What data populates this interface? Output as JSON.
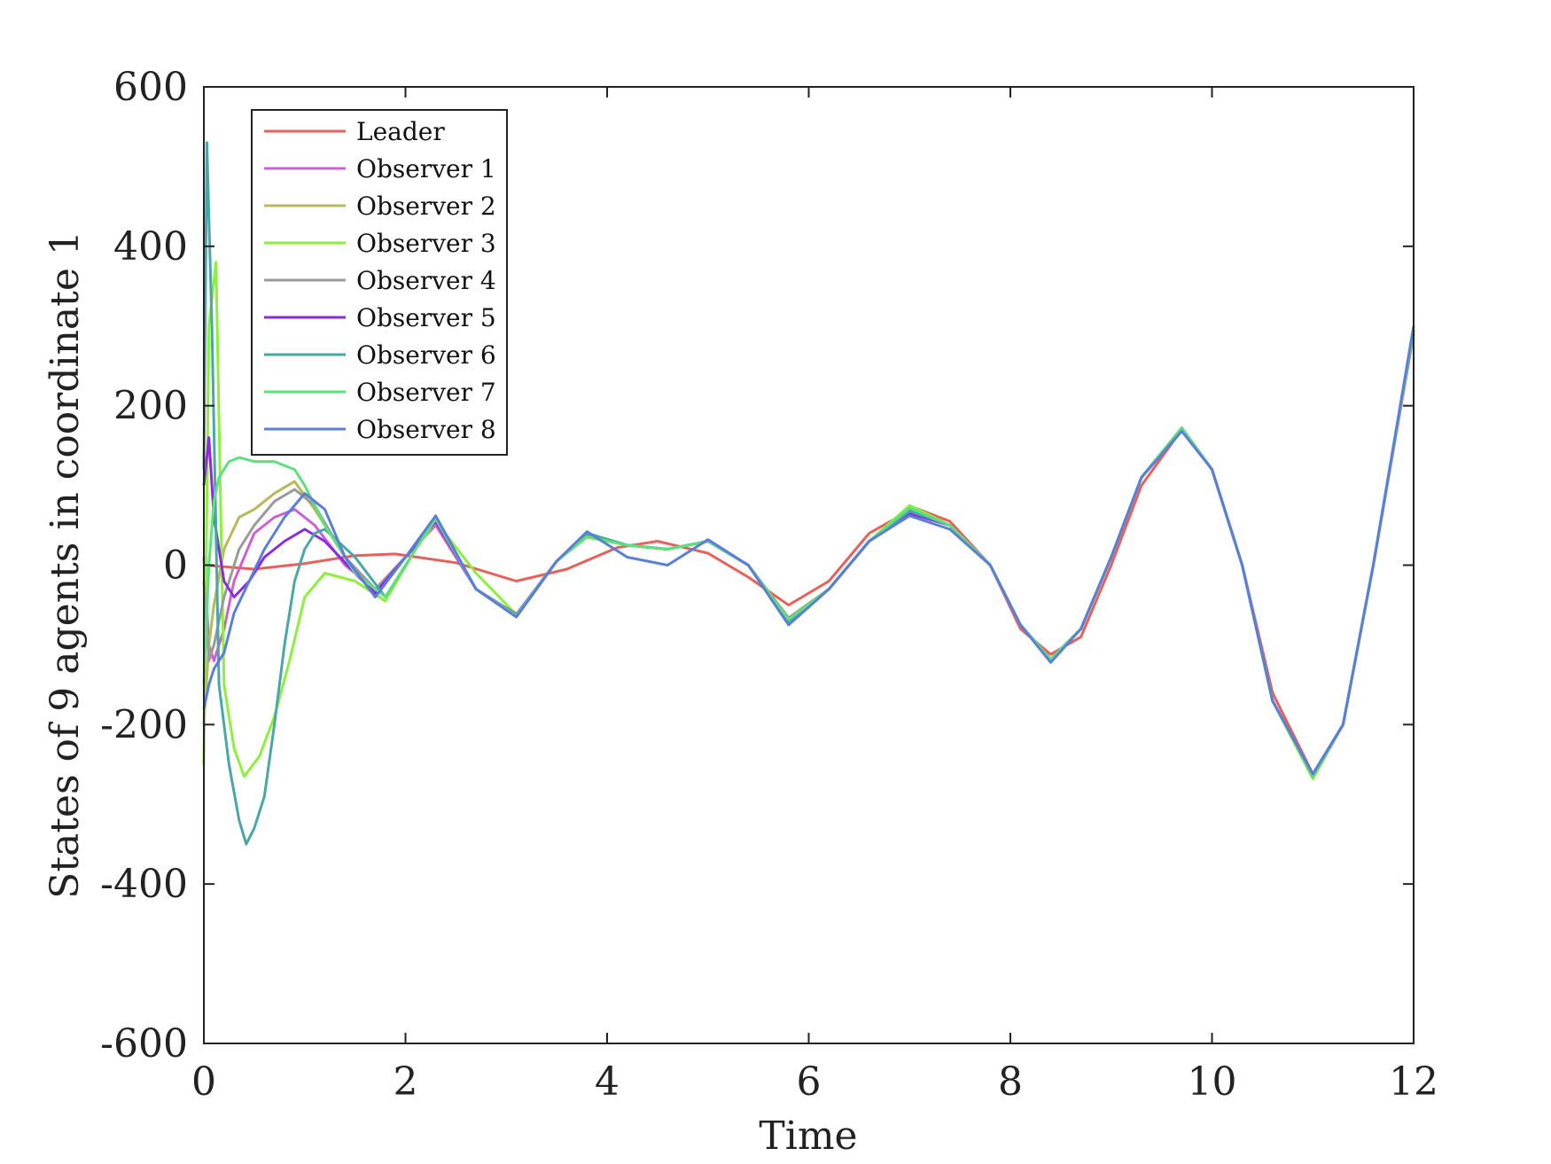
{
  "chart_data": {
    "type": "line",
    "title": "",
    "xlabel": "Time",
    "ylabel": "States of 9 agents in coordinate 1",
    "xlim": [
      0,
      12
    ],
    "ylim": [
      -600,
      600
    ],
    "xticks": [
      "0",
      "2",
      "4",
      "6",
      "8",
      "10",
      "12"
    ],
    "yticks": [
      "600",
      "400",
      "200",
      "0",
      "-200",
      "-400",
      "-600"
    ],
    "grid": false,
    "legend_position": "top-left",
    "series": [
      {
        "name": "Leader",
        "color": "#e8605a",
        "x": [
          0,
          0.5,
          1,
          1.5,
          1.9,
          2.5,
          3.1,
          3.6,
          4.1,
          4.5,
          5,
          5.4,
          5.8,
          6.2,
          6.6,
          7.05,
          7.4,
          7.8,
          8.1,
          8.4,
          8.7,
          9,
          9.3,
          9.7,
          10,
          10.3,
          10.6,
          11,
          11.3,
          11.6,
          12
        ],
        "y": [
          0,
          -5,
          2,
          12,
          14,
          3,
          -20,
          -5,
          22,
          30,
          15,
          -15,
          -50,
          -20,
          40,
          72,
          55,
          0,
          -80,
          -112,
          -90,
          0,
          100,
          170,
          120,
          0,
          -160,
          -262,
          -200,
          0,
          290
        ]
      },
      {
        "name": "Observer 1",
        "color": "#cc60d6",
        "x": [
          0,
          0.05,
          0.1,
          0.2,
          0.3,
          0.5,
          0.7,
          0.9,
          1.1,
          1.4,
          1.7,
          2,
          2.3,
          2.7,
          3.1,
          3.5,
          3.8,
          4.2,
          4.6,
          5,
          5.4,
          5.8,
          6.2,
          6.6,
          7,
          7.4,
          7.8,
          8.1,
          8.4,
          8.7,
          9,
          9.3,
          9.7,
          10,
          10.3,
          10.6,
          11,
          11.3,
          11.6,
          12
        ],
        "y": [
          10,
          -100,
          -120,
          -80,
          -20,
          40,
          60,
          70,
          50,
          0,
          -30,
          10,
          50,
          -30,
          -65,
          5,
          38,
          25,
          20,
          30,
          0,
          -68,
          -30,
          30,
          65,
          50,
          0,
          -75,
          -118,
          -80,
          10,
          110,
          172,
          120,
          0,
          -170,
          -265,
          -200,
          0,
          295
        ]
      },
      {
        "name": "Observer 2",
        "color": "#b9b95c",
        "x": [
          0,
          0.05,
          0.1,
          0.2,
          0.35,
          0.5,
          0.7,
          0.9,
          1.1,
          1.4,
          1.7,
          2,
          2.3,
          2.7,
          3.1,
          3.5,
          3.8,
          4.2,
          4.6,
          5,
          5.4,
          5.8,
          6.2,
          6.6,
          7,
          7.4,
          7.8,
          8.1,
          8.4,
          8.7,
          9,
          9.3,
          9.7,
          10,
          10.3,
          10.6,
          11,
          11.3,
          11.6,
          12
        ],
        "y": [
          -200,
          -100,
          -50,
          20,
          60,
          70,
          90,
          105,
          70,
          10,
          -30,
          10,
          55,
          -30,
          -62,
          5,
          38,
          25,
          20,
          30,
          0,
          -66,
          -30,
          30,
          68,
          50,
          0,
          -75,
          -118,
          -80,
          10,
          110,
          172,
          120,
          0,
          -170,
          -265,
          -200,
          0,
          295
        ]
      },
      {
        "name": "Observer 3",
        "color": "#8df03c",
        "x": [
          0,
          0.05,
          0.12,
          0.2,
          0.3,
          0.4,
          0.55,
          0.7,
          0.85,
          1,
          1.2,
          1.5,
          1.8,
          2.1,
          2.3,
          2.7,
          3.1,
          3.5,
          3.8,
          4.2,
          4.6,
          5,
          5.4,
          5.8,
          6.2,
          6.6,
          7,
          7.4,
          7.8,
          8.1,
          8.4,
          8.7,
          9,
          9.3,
          9.7,
          10,
          10.3,
          10.6,
          11,
          11.3,
          11.6,
          12
        ],
        "y": [
          -250,
          300,
          380,
          -150,
          -230,
          -265,
          -240,
          -190,
          -120,
          -40,
          -10,
          -20,
          -45,
          20,
          55,
          -10,
          -62,
          5,
          35,
          25,
          20,
          30,
          0,
          -70,
          -30,
          30,
          75,
          50,
          0,
          -75,
          -118,
          -80,
          10,
          110,
          172,
          120,
          0,
          -170,
          -268,
          -200,
          0,
          295
        ]
      },
      {
        "name": "Observer 4",
        "color": "#9b9b9b",
        "x": [
          0,
          0.05,
          0.1,
          0.2,
          0.35,
          0.5,
          0.7,
          0.9,
          1.1,
          1.4,
          1.7,
          2,
          2.3,
          2.7,
          3.1,
          3.5,
          3.8,
          4.2,
          4.6,
          5,
          5.4,
          5.8,
          6.2,
          6.6,
          7,
          7.4,
          7.8,
          8.1,
          8.4,
          8.7,
          9,
          9.3,
          9.7,
          10,
          10.3,
          10.6,
          11,
          11.3,
          11.6,
          12
        ],
        "y": [
          -20,
          -120,
          -100,
          -40,
          20,
          50,
          80,
          95,
          75,
          10,
          -30,
          10,
          55,
          -30,
          -63,
          5,
          38,
          25,
          20,
          30,
          0,
          -67,
          -30,
          30,
          66,
          50,
          0,
          -75,
          -118,
          -80,
          10,
          110,
          172,
          120,
          0,
          -170,
          -265,
          -200,
          0,
          295
        ]
      },
      {
        "name": "Observer 5",
        "color": "#8a2be2",
        "x": [
          0,
          0.05,
          0.1,
          0.2,
          0.3,
          0.45,
          0.6,
          0.8,
          1,
          1.2,
          1.5,
          1.7,
          2,
          2.3,
          2.7,
          3.1,
          3.5,
          3.8,
          4.2,
          4.6,
          5,
          5.4,
          5.8,
          6.2,
          6.6,
          7,
          7.4,
          7.8,
          8.1,
          8.4,
          8.7,
          9,
          9.3,
          9.7,
          10,
          10.3,
          10.6,
          11,
          11.3,
          11.6,
          12
        ],
        "y": [
          100,
          160,
          60,
          -20,
          -40,
          -20,
          10,
          30,
          45,
          30,
          -10,
          -35,
          10,
          55,
          -30,
          -62,
          5,
          38,
          25,
          20,
          30,
          0,
          -68,
          -30,
          30,
          65,
          50,
          0,
          -75,
          -118,
          -80,
          10,
          110,
          172,
          120,
          0,
          -170,
          -265,
          -200,
          0,
          295
        ]
      },
      {
        "name": "Observer 6",
        "color": "#4aa7a7",
        "x": [
          0,
          0.03,
          0.08,
          0.15,
          0.25,
          0.35,
          0.42,
          0.5,
          0.6,
          0.7,
          0.8,
          0.9,
          1,
          1.1,
          1.2,
          1.5,
          1.8,
          2.1,
          2.3,
          2.7,
          3.1,
          3.5,
          3.8,
          4.2,
          4.6,
          5,
          5.4,
          5.8,
          6.2,
          6.6,
          7,
          7.4,
          7.8,
          8.1,
          8.4,
          8.7,
          9,
          9.3,
          9.7,
          10,
          10.3,
          10.6,
          11,
          11.3,
          11.6,
          12
        ],
        "y": [
          120,
          530,
          300,
          -150,
          -250,
          -320,
          -350,
          -330,
          -290,
          -200,
          -100,
          -20,
          20,
          40,
          45,
          10,
          -40,
          20,
          60,
          -30,
          -65,
          5,
          40,
          25,
          20,
          30,
          0,
          -72,
          -30,
          30,
          68,
          50,
          0,
          -75,
          -120,
          -80,
          10,
          110,
          172,
          120,
          0,
          -170,
          -265,
          -200,
          0,
          295
        ]
      },
      {
        "name": "Observer 7",
        "color": "#5fe07f",
        "x": [
          0,
          0.05,
          0.1,
          0.15,
          0.25,
          0.35,
          0.5,
          0.7,
          0.9,
          1,
          1.2,
          1.5,
          1.8,
          2.1,
          2.3,
          2.7,
          3.1,
          3.5,
          3.8,
          4.2,
          4.6,
          5,
          5.4,
          5.8,
          6.2,
          6.6,
          7,
          7.4,
          7.8,
          8.1,
          8.4,
          8.7,
          9,
          9.3,
          9.7,
          10,
          10.3,
          10.6,
          11,
          11.3,
          11.6,
          12
        ],
        "y": [
          -150,
          0,
          80,
          110,
          130,
          135,
          130,
          130,
          120,
          100,
          50,
          -10,
          -40,
          20,
          58,
          -30,
          -63,
          5,
          36,
          25,
          20,
          30,
          0,
          -68,
          -30,
          30,
          72,
          50,
          0,
          -75,
          -118,
          -80,
          10,
          110,
          172,
          120,
          0,
          -170,
          -265,
          -200,
          0,
          295
        ]
      },
      {
        "name": "Observer 8",
        "color": "#5b7fd6",
        "x": [
          0,
          0.05,
          0.1,
          0.2,
          0.3,
          0.45,
          0.6,
          0.8,
          1,
          1.2,
          1.4,
          1.7,
          2,
          2.3,
          2.7,
          3.1,
          3.5,
          3.8,
          4.2,
          4.6,
          5,
          5.4,
          5.8,
          6.2,
          6.6,
          7,
          7.4,
          7.8,
          8.1,
          8.4,
          8.7,
          9,
          9.3,
          9.7,
          10,
          10.3,
          10.6,
          11,
          11.3,
          11.6,
          12
        ],
        "y": [
          -180,
          -150,
          -130,
          -110,
          -60,
          -20,
          20,
          60,
          90,
          70,
          10,
          -40,
          10,
          62,
          -30,
          -65,
          5,
          42,
          10,
          0,
          32,
          0,
          -75,
          -30,
          30,
          62,
          45,
          0,
          -75,
          -122,
          -80,
          10,
          110,
          168,
          120,
          0,
          -170,
          -262,
          -200,
          0,
          300
        ]
      }
    ]
  }
}
